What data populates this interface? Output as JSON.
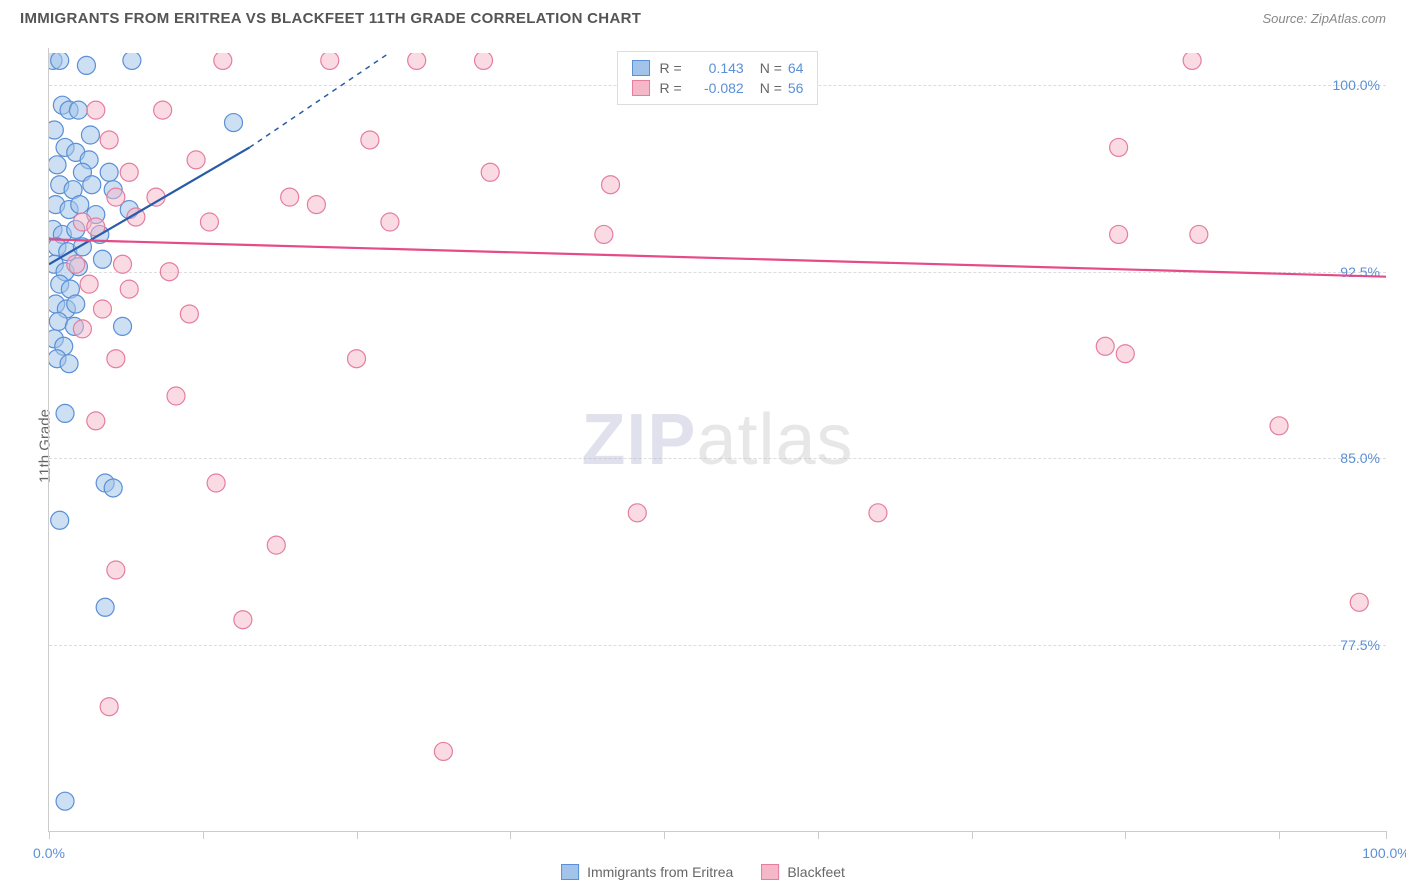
{
  "header": {
    "title": "IMMIGRANTS FROM ERITREA VS BLACKFEET 11TH GRADE CORRELATION CHART",
    "source": "Source: ZipAtlas.com"
  },
  "chart": {
    "type": "scatter",
    "ylabel": "11th Grade",
    "background_color": "#ffffff",
    "grid_color": "#dddddd",
    "axis_color": "#cccccc",
    "xlim": [
      0,
      100
    ],
    "ylim": [
      70,
      101.5
    ],
    "xticks": [
      0,
      11.5,
      23,
      34.5,
      46,
      57.5,
      69,
      80.5,
      92,
      100
    ],
    "xtick_labels": {
      "0": "0.0%",
      "100": "100.0%"
    },
    "yticks": [
      77.5,
      85.0,
      92.5,
      100.0
    ],
    "ytick_labels": [
      "77.5%",
      "85.0%",
      "92.5%",
      "100.0%"
    ],
    "label_fontsize": 14,
    "tick_color": "#5b8fd6",
    "watermark": {
      "zip": "ZIP",
      "atlas": "atlas"
    },
    "series": [
      {
        "name": "Immigrants from Eritrea",
        "fill": "#a3c4ea",
        "stroke": "#5b8fd6",
        "fill_opacity": 0.55,
        "marker_radius": 9,
        "r": "0.143",
        "n": "64",
        "trend": {
          "x1": 0,
          "y1": 92.8,
          "x2": 15,
          "y2": 97.5,
          "dash_x2": 26,
          "dash_y2": 101.5,
          "stroke": "#2a5ba8",
          "width": 2.2
        },
        "points": [
          [
            0.3,
            101
          ],
          [
            0.8,
            101
          ],
          [
            6.2,
            101
          ],
          [
            2.8,
            100.8
          ],
          [
            1.0,
            99.2
          ],
          [
            1.5,
            99.0
          ],
          [
            2.2,
            99.0
          ],
          [
            0.4,
            98.2
          ],
          [
            3.1,
            98.0
          ],
          [
            13.8,
            98.5
          ],
          [
            1.2,
            97.5
          ],
          [
            2.0,
            97.3
          ],
          [
            3.0,
            97.0
          ],
          [
            0.6,
            96.8
          ],
          [
            2.5,
            96.5
          ],
          [
            0.8,
            96.0
          ],
          [
            1.8,
            95.8
          ],
          [
            3.2,
            96.0
          ],
          [
            4.8,
            95.8
          ],
          [
            0.5,
            95.2
          ],
          [
            1.5,
            95.0
          ],
          [
            2.3,
            95.2
          ],
          [
            3.5,
            94.8
          ],
          [
            6.0,
            95.0
          ],
          [
            4.5,
            96.5
          ],
          [
            0.3,
            94.2
          ],
          [
            1.0,
            94.0
          ],
          [
            2.0,
            94.2
          ],
          [
            3.8,
            94.0
          ],
          [
            0.6,
            93.5
          ],
          [
            1.4,
            93.3
          ],
          [
            2.5,
            93.5
          ],
          [
            4.0,
            93.0
          ],
          [
            0.4,
            92.8
          ],
          [
            1.2,
            92.5
          ],
          [
            2.2,
            92.7
          ],
          [
            0.8,
            92.0
          ],
          [
            1.6,
            91.8
          ],
          [
            0.5,
            91.2
          ],
          [
            1.3,
            91.0
          ],
          [
            2.0,
            91.2
          ],
          [
            0.7,
            90.5
          ],
          [
            1.9,
            90.3
          ],
          [
            5.5,
            90.3
          ],
          [
            0.4,
            89.8
          ],
          [
            1.1,
            89.5
          ],
          [
            0.6,
            89.0
          ],
          [
            1.5,
            88.8
          ],
          [
            1.2,
            86.8
          ],
          [
            4.2,
            84.0
          ],
          [
            4.8,
            83.8
          ],
          [
            0.8,
            82.5
          ],
          [
            4.2,
            79.0
          ],
          [
            1.2,
            71.2
          ]
        ]
      },
      {
        "name": "Blackfeet",
        "fill": "#f5b8c9",
        "stroke": "#e57da0",
        "fill_opacity": 0.5,
        "marker_radius": 9,
        "r": "-0.082",
        "n": "56",
        "trend": {
          "x1": 0,
          "y1": 93.8,
          "x2": 100,
          "y2": 92.3,
          "stroke": "#e54b86",
          "width": 2.2
        },
        "points": [
          [
            13,
            101
          ],
          [
            21,
            101
          ],
          [
            27.5,
            101
          ],
          [
            32.5,
            101
          ],
          [
            85.5,
            101
          ],
          [
            3.5,
            99.0
          ],
          [
            8.5,
            99.0
          ],
          [
            4.5,
            97.8
          ],
          [
            24,
            97.8
          ],
          [
            80,
            97.5
          ],
          [
            6.0,
            96.5
          ],
          [
            11,
            97.0
          ],
          [
            33,
            96.5
          ],
          [
            42,
            96.0
          ],
          [
            5.0,
            95.5
          ],
          [
            8.0,
            95.5
          ],
          [
            18,
            95.5
          ],
          [
            20,
            95.2
          ],
          [
            2.5,
            94.5
          ],
          [
            6.5,
            94.7
          ],
          [
            12,
            94.5
          ],
          [
            25.5,
            94.5
          ],
          [
            3.5,
            94.3
          ],
          [
            41.5,
            94.0
          ],
          [
            80,
            94.0
          ],
          [
            86,
            94.0
          ],
          [
            2.0,
            92.8
          ],
          [
            5.5,
            92.8
          ],
          [
            9.0,
            92.5
          ],
          [
            3.0,
            92.0
          ],
          [
            6.0,
            91.8
          ],
          [
            4.0,
            91.0
          ],
          [
            10.5,
            90.8
          ],
          [
            2.5,
            90.2
          ],
          [
            5.0,
            89.0
          ],
          [
            23,
            89.0
          ],
          [
            9.5,
            87.5
          ],
          [
            3.5,
            86.5
          ],
          [
            92,
            86.3
          ],
          [
            12.5,
            84.0
          ],
          [
            44,
            82.8
          ],
          [
            62,
            82.8
          ],
          [
            79,
            89.5
          ],
          [
            80.5,
            89.2
          ],
          [
            17,
            81.5
          ],
          [
            98,
            79.2
          ],
          [
            5.0,
            80.5
          ],
          [
            14.5,
            78.5
          ],
          [
            29.5,
            73.2
          ],
          [
            4.5,
            75.0
          ]
        ]
      }
    ]
  },
  "legend_bottom": [
    {
      "label": "Immigrants from Eritrea",
      "fill": "#a3c4ea",
      "stroke": "#5b8fd6"
    },
    {
      "label": "Blackfeet",
      "fill": "#f5b8c9",
      "stroke": "#e57da0"
    }
  ]
}
